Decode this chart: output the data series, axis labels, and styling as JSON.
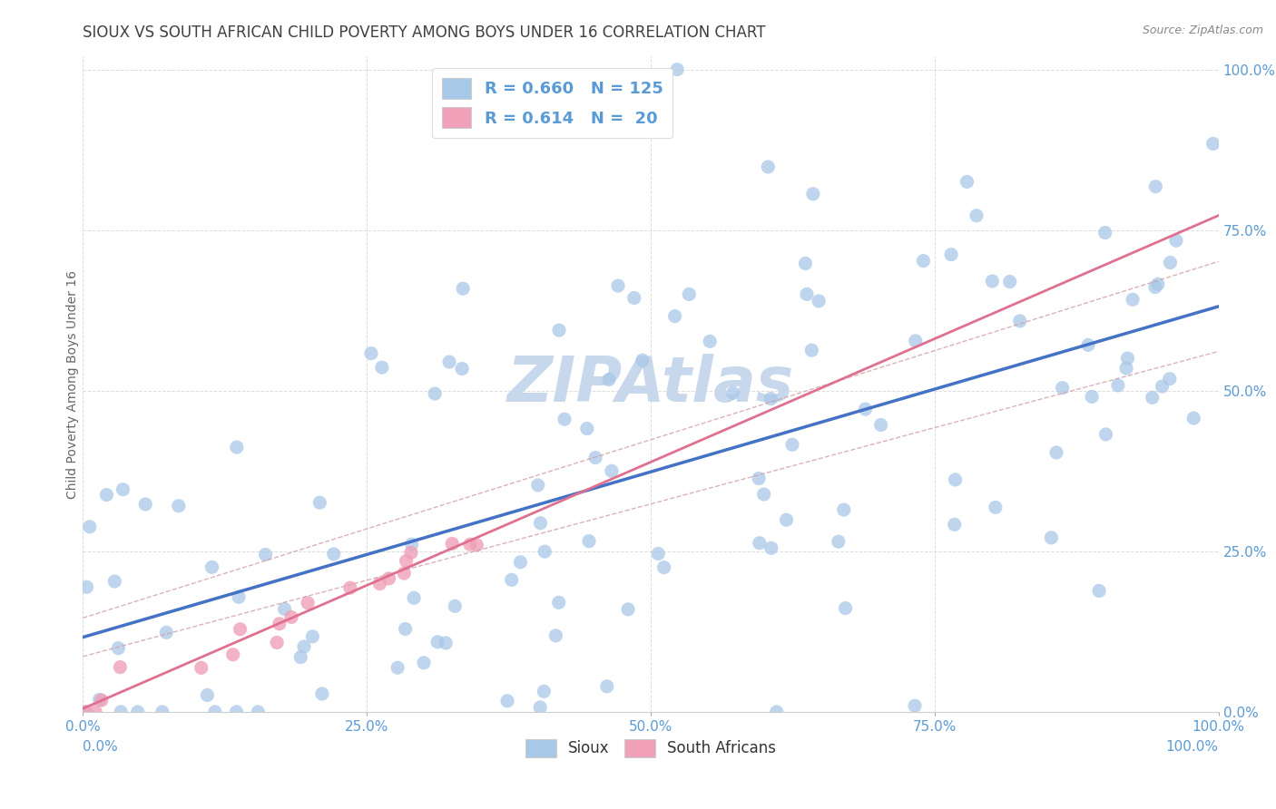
{
  "title": "SIOUX VS SOUTH AFRICAN CHILD POVERTY AMONG BOYS UNDER 16 CORRELATION CHART",
  "source": "Source: ZipAtlas.com",
  "ylabel": "Child Poverty Among Boys Under 16",
  "blue_color": "#A8C8E8",
  "pink_color": "#F0A0B8",
  "line_blue": "#4472C4",
  "line_pink": "#E07090",
  "line_dash_color": "#D0A0A8",
  "watermark": "ZIPAtlas",
  "watermark_color": "#C8D8EC",
  "tick_color": "#5B9BD5",
  "grid_color": "#C8C8C8",
  "title_color": "#404040",
  "sioux_R": 0.66,
  "sioux_N": 125,
  "sa_R": 0.614,
  "sa_N": 20
}
